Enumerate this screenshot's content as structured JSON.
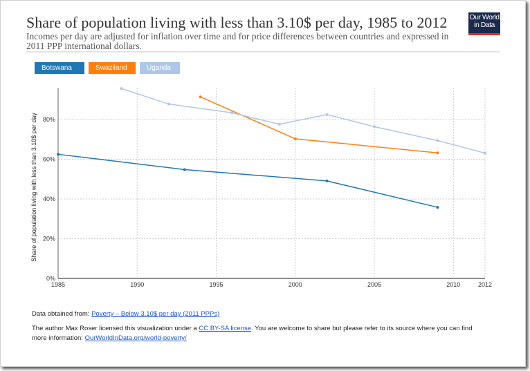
{
  "header": {
    "title": "Share of population living with less than 3.10$ per day, 1985 to 2012",
    "subtitle": "Incomes per day are adjusted for inflation over time and for price differences between countries and expressed in 2011 PPP international dollars.",
    "logo_text": "Our World in Data"
  },
  "chart_data": {
    "type": "line",
    "title": "Share of population living with less than 3.10$ per day, 1985 to 2012",
    "ylabel": "Share of population living with less than 3.10$ per day",
    "xlabel": "",
    "xlim": [
      1985,
      2012
    ],
    "ylim": [
      0,
      96
    ],
    "x_ticks": [
      1985,
      1990,
      1995,
      2000,
      2005,
      2010,
      2012
    ],
    "y_ticks": [
      0,
      20,
      40,
      60,
      80
    ],
    "y_tick_labels": [
      "0%",
      "20%",
      "40%",
      "60%",
      "80%"
    ],
    "grid": true,
    "legend_placement": "top-left",
    "series": [
      {
        "name": "Botswana",
        "color": "#1f77b4",
        "points": [
          [
            1985,
            62.5
          ],
          [
            1993,
            54.8
          ],
          [
            2002,
            49.1
          ],
          [
            2009,
            35.8
          ]
        ]
      },
      {
        "name": "Swaziland",
        "color": "#ff7f0e",
        "points": [
          [
            1994,
            91.4
          ],
          [
            2000,
            70.3
          ],
          [
            2009,
            63.2
          ]
        ]
      },
      {
        "name": "Uganda",
        "color": "#aec7e8",
        "points": [
          [
            1989,
            95.6
          ],
          [
            1992,
            87.8
          ],
          [
            1996,
            83.4
          ],
          [
            1999,
            77.6
          ],
          [
            2002,
            82.5
          ],
          [
            2005,
            76.4
          ],
          [
            2009,
            69.4
          ],
          [
            2012,
            63.1
          ]
        ]
      }
    ]
  },
  "footer": {
    "source_prefix": "Data obtained from: ",
    "source_link": "Poverty – Below 3.10$ per day (2011 PPPs)",
    "license_prefix": "The author Max Roser licensed this visualization under a ",
    "license_link": "CC BY-SA license",
    "license_suffix": ". You are welcome to share but please refer to its source where you can find more information: ",
    "info_link": "OurWorldInData.org/world-poverty/"
  }
}
